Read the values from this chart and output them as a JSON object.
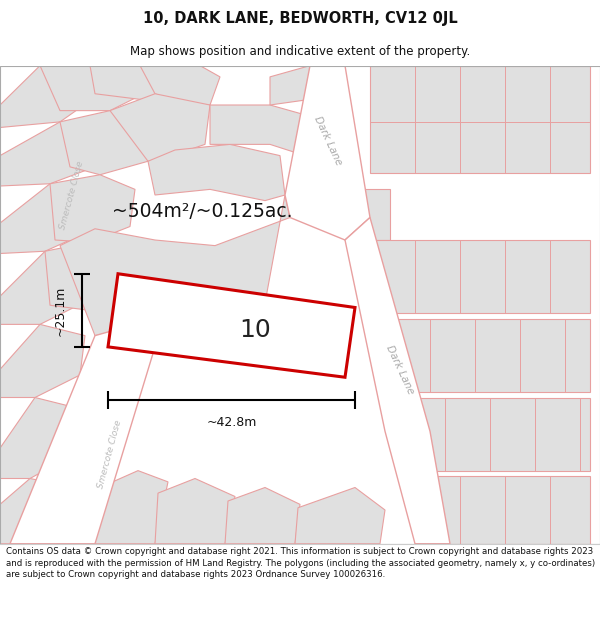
{
  "title": "10, DARK LANE, BEDWORTH, CV12 0JL",
  "subtitle": "Map shows position and indicative extent of the property.",
  "footer": "Contains OS data © Crown copyright and database right 2021. This information is subject to Crown copyright and database rights 2023 and is reproduced with the permission of HM Land Registry. The polygons (including the associated geometry, namely x, y co-ordinates) are subject to Crown copyright and database rights 2023 Ordnance Survey 100026316.",
  "bg_color": "#ffffff",
  "map_bg": "#ffffff",
  "block_fill": "#e0e0e0",
  "block_stroke": "#e8a0a0",
  "road_fill": "#ffffff",
  "highlight_fill": "#ffffff",
  "highlight_stroke": "#cc0000",
  "area_text": "~504m²/~0.125ac.",
  "dim_width": "~42.8m",
  "dim_height": "~25.1m",
  "dark_lane_label": "Dark Lane",
  "smercote_label": "Smercote Close"
}
